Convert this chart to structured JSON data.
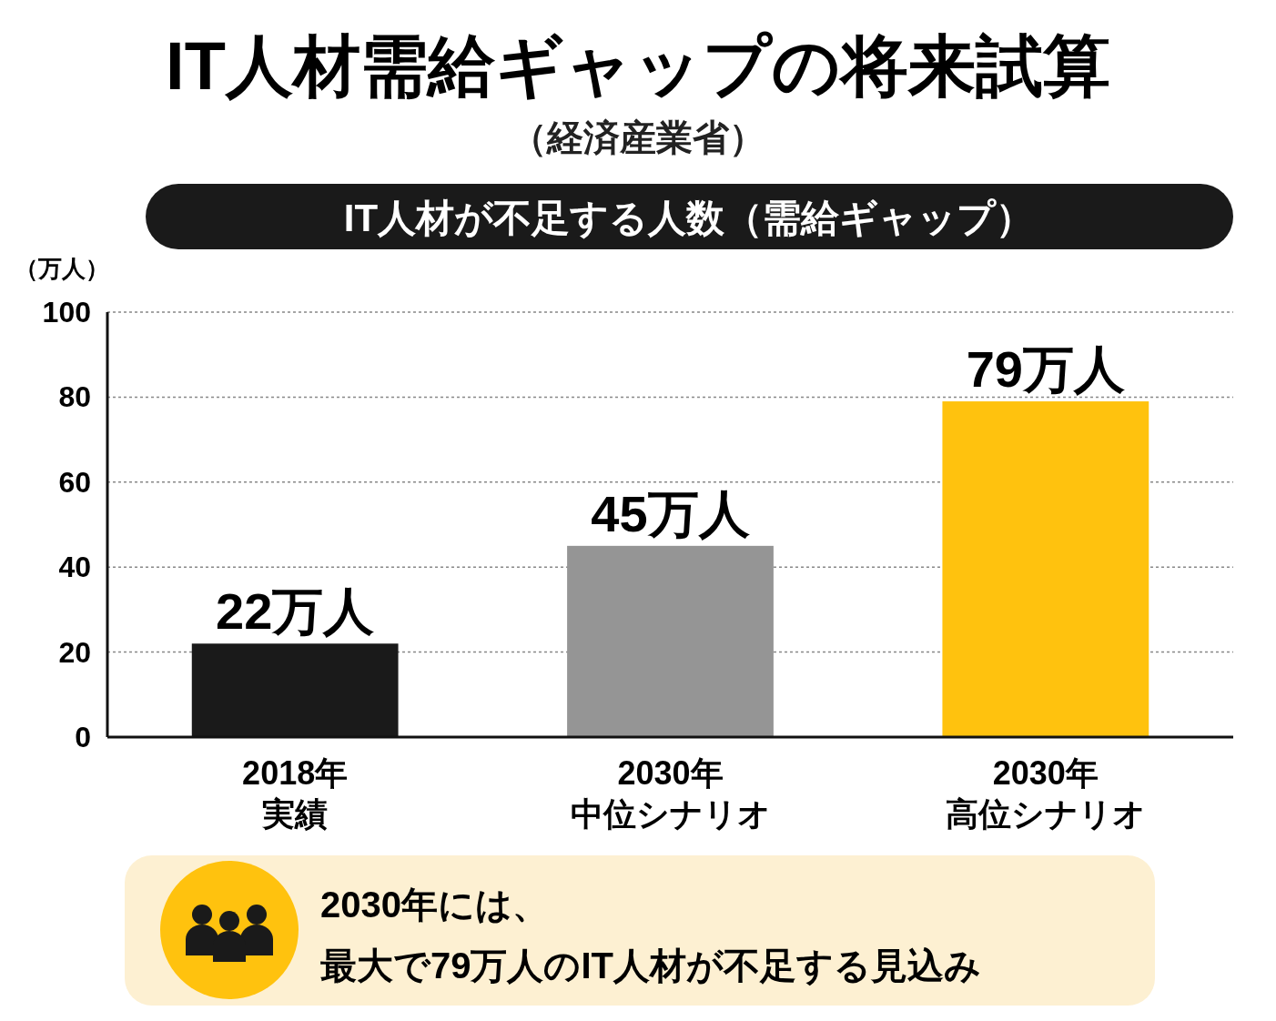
{
  "chart_data": {
    "type": "bar",
    "title": "IT人材需給ギャップの将来試算",
    "subtitle": "（経済産業省）",
    "ylabel": "（万人）",
    "categories": [
      "2018年実績",
      "2030年中位シナリオ",
      "2030年高位シナリオ"
    ],
    "values": [
      22,
      45,
      79
    ],
    "colors": [
      "#1a1a1a",
      "#959595",
      "#ffc20e"
    ],
    "value_labels": [
      "22万人",
      "45万人",
      "79万人"
    ],
    "ylim": [
      0,
      100
    ],
    "yticks": [
      0,
      20,
      40,
      60,
      80,
      100
    ],
    "grid": "y",
    "annotations": [
      "IT人材が不足する人数（需給ギャップ）",
      "2030年には、",
      "最大で79万人のIT人材が不足する見込み"
    ]
  }
}
